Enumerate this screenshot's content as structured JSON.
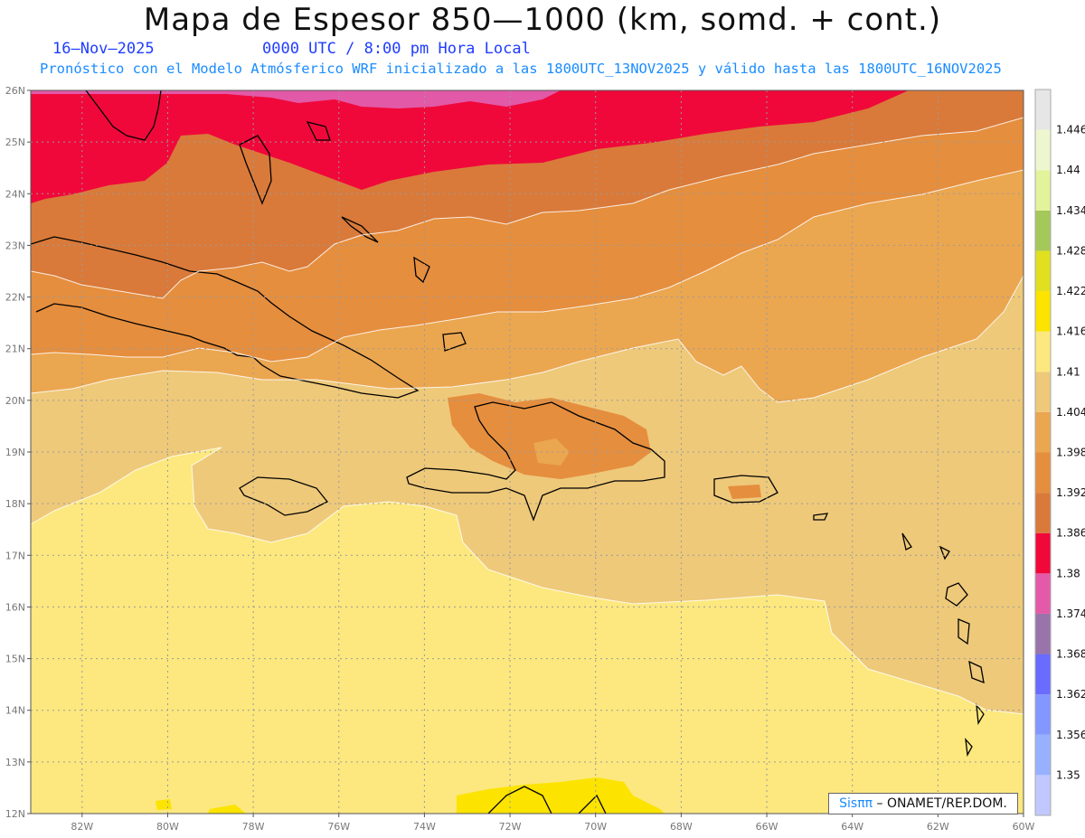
{
  "header": {
    "title": "Mapa de Espesor 850—1000 (km, somd. + cont.)",
    "date": "16–Nov–2025",
    "time": "0000 UTC / 8:00 pm Hora Local",
    "subtitle": "Pronóstico con el Modelo Atmósferico WRF inicializado a las 1800UTC_13NOV2025 y válido hasta las  1800UTC_16NOV2025"
  },
  "map": {
    "lat_labels": [
      "26N",
      "25N",
      "24N",
      "23N",
      "22N",
      "21N",
      "20N",
      "19N",
      "18N",
      "17N",
      "16N",
      "15N",
      "14N",
      "13N",
      "12N"
    ],
    "lon_labels": [
      "82W",
      "80W",
      "78W",
      "76W",
      "74W",
      "72W",
      "70W",
      "68W",
      "66W",
      "64W",
      "62W",
      "60W"
    ],
    "lat_range": [
      12,
      26
    ],
    "lon_range": [
      -83.2,
      -60
    ],
    "grid": true,
    "band_colors": {
      "1.38": "#f0083a",
      "1.386": "#d97a3a",
      "1.392": "#e58e3e",
      "1.398": "#eba650",
      "1.404": "#eec97a",
      "1.41": "#fce87e",
      "1.416": "#fce300",
      "1.374": "#e259a8"
    }
  },
  "colorbar": {
    "levels": [
      "1.35",
      "1.356",
      "1.362",
      "1.368",
      "1.374",
      "1.38",
      "1.386",
      "1.392",
      "1.398",
      "1.404",
      "1.41",
      "1.416",
      "1.422",
      "1.428",
      "1.434",
      "1.44",
      "1.446"
    ],
    "colors": [
      "#c0c8ff",
      "#97b0ff",
      "#8297ff",
      "#6a6bff",
      "#9974aa",
      "#e35aa8",
      "#f0083a",
      "#d97a3a",
      "#e58e3e",
      "#eba650",
      "#eec97a",
      "#fce87e",
      "#fce300",
      "#e0e020",
      "#a5c85a",
      "#e3f39c",
      "#eef6cf",
      "#e6e6e6"
    ]
  },
  "credit": {
    "logo_text": "Sisππ",
    "text": "– ONAMET/REP.DOM."
  }
}
